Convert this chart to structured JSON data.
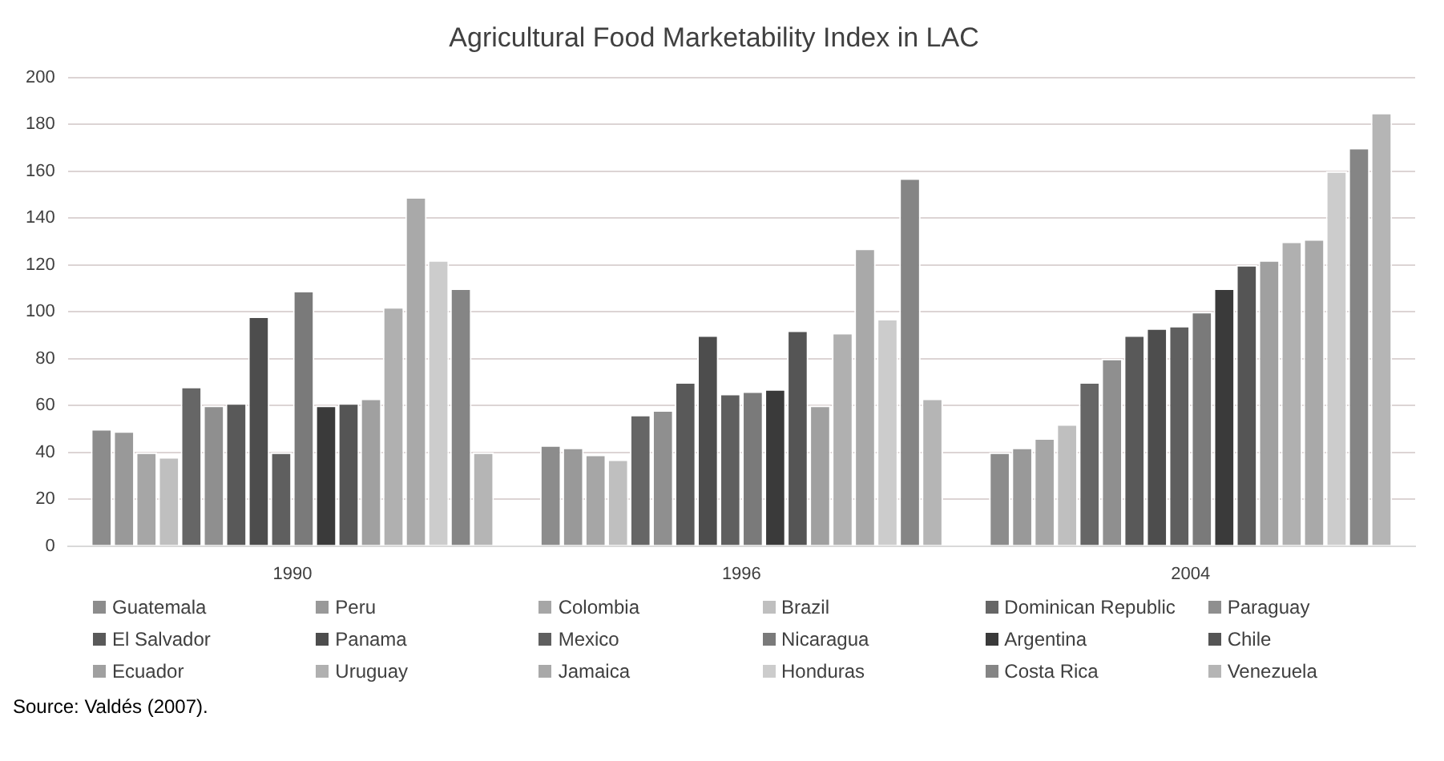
{
  "chart_data": {
    "type": "bar",
    "title": "Agricultural Food Marketability Index in LAC",
    "categories": [
      "1990",
      "1996",
      "2004"
    ],
    "series": [
      {
        "name": "Guatemala",
        "color": "#8c8c8c",
        "values": [
          50,
          43,
          40
        ]
      },
      {
        "name": "Peru",
        "color": "#999999",
        "values": [
          49,
          42,
          42
        ]
      },
      {
        "name": "Colombia",
        "color": "#a6a6a6",
        "values": [
          40,
          39,
          46
        ]
      },
      {
        "name": "Brazil",
        "color": "#bfbfbf",
        "values": [
          38,
          37,
          52
        ]
      },
      {
        "name": "Dominican Republic",
        "color": "#666666",
        "values": [
          68,
          56,
          70
        ]
      },
      {
        "name": "Paraguay",
        "color": "#8f8f8f",
        "values": [
          60,
          58,
          80
        ]
      },
      {
        "name": "El Salvador",
        "color": "#595959",
        "values": [
          61,
          70,
          90
        ]
      },
      {
        "name": "Panama",
        "color": "#4d4d4d",
        "values": [
          98,
          90,
          93
        ]
      },
      {
        "name": "Mexico",
        "color": "#5f5f5f",
        "values": [
          40,
          65,
          94
        ]
      },
      {
        "name": "Nicaragua",
        "color": "#7a7a7a",
        "values": [
          109,
          66,
          100
        ]
      },
      {
        "name": "Argentina",
        "color": "#3a3a3a",
        "values": [
          60,
          67,
          110
        ]
      },
      {
        "name": "Chile",
        "color": "#555555",
        "values": [
          61,
          92,
          120
        ]
      },
      {
        "name": "Ecuador",
        "color": "#a0a0a0",
        "values": [
          63,
          60,
          122
        ]
      },
      {
        "name": "Uruguay",
        "color": "#b0b0b0",
        "values": [
          102,
          91,
          130
        ]
      },
      {
        "name": "Jamaica",
        "color": "#a9a9a9",
        "values": [
          149,
          127,
          131
        ]
      },
      {
        "name": "Honduras",
        "color": "#cccccc",
        "values": [
          122,
          97,
          160
        ]
      },
      {
        "name": "Costa Rica",
        "color": "#858585",
        "values": [
          110,
          157,
          170
        ]
      },
      {
        "name": "Venezuela",
        "color": "#b5b5b5",
        "values": [
          40,
          63,
          185
        ]
      }
    ],
    "ylim": [
      0,
      200
    ],
    "yticks": [
      0,
      20,
      40,
      60,
      80,
      100,
      120,
      140,
      160,
      180,
      200
    ],
    "grid": "y",
    "legend": "bottom",
    "annotations": [
      "Source: Valdés (2007)."
    ]
  }
}
